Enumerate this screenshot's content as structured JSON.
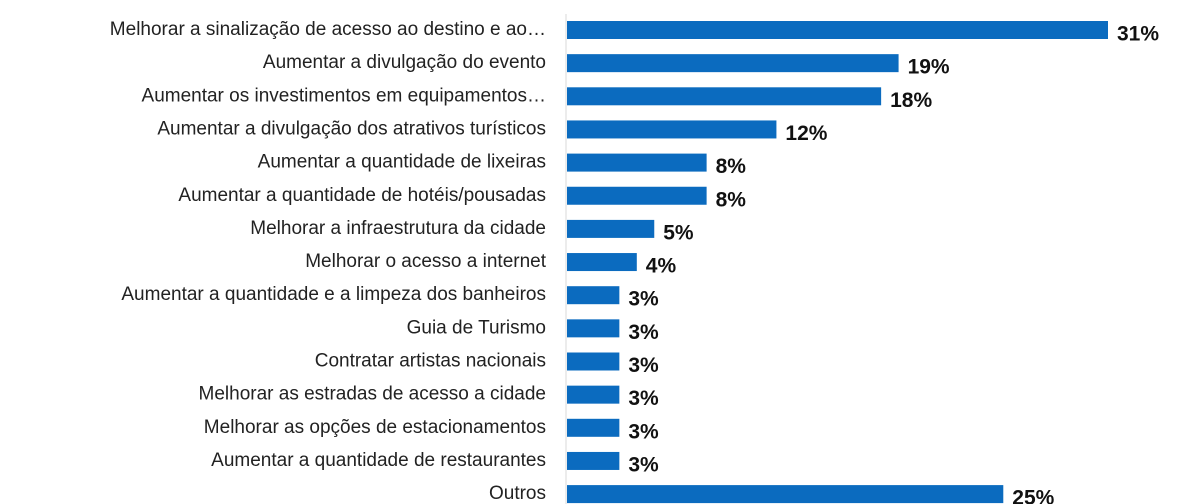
{
  "chart_data": {
    "type": "barh",
    "categories": [
      "Melhorar a sinalização de acesso ao destino e ao…",
      "Aumentar a divulgação do evento",
      "Aumentar os investimentos em equipamentos…",
      "Aumentar a divulgação dos atrativos turísticos",
      "Aumentar a quantidade de lixeiras",
      "Aumentar a quantidade de hotéis/pousadas",
      "Melhorar a infraestrutura da cidade",
      "Melhorar o acesso a internet",
      "Aumentar a quantidade e a limpeza dos banheiros",
      "Guia de Turismo",
      "Contratar artistas nacionais",
      "Melhorar as estradas de acesso a cidade",
      "Melhorar as opções de estacionamentos",
      "Aumentar a quantidade de restaurantes",
      "Outros"
    ],
    "values": [
      31,
      19,
      18,
      12,
      8,
      8,
      5,
      4,
      3,
      3,
      3,
      3,
      3,
      3,
      25
    ],
    "value_labels": [
      "31%",
      "19%",
      "18%",
      "12%",
      "8%",
      "8%",
      "5%",
      "4%",
      "3%",
      "3%",
      "3%",
      "3%",
      "3%",
      "3%",
      "25%"
    ],
    "color": "#0b6bbf"
  }
}
